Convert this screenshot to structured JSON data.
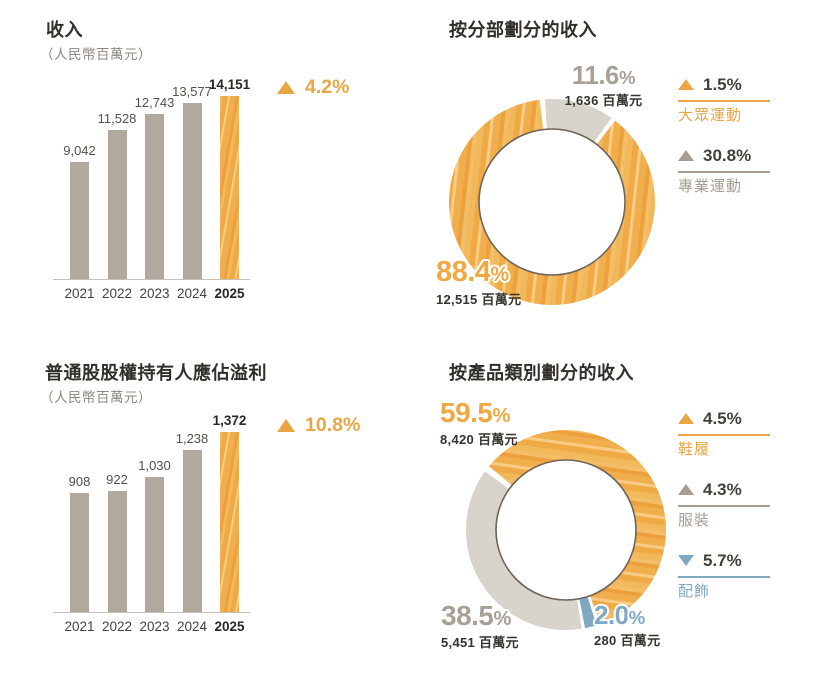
{
  "colors": {
    "accent_orange": "#E9A643",
    "bar_gray": "#B1A89E",
    "donut_gray": "#D8D3CB",
    "donut_blue": "#7FA8C2",
    "legend_gray": "#A69D92",
    "big_label_orange": "#F0A843",
    "big_label_gray": "#A8A096",
    "big_label_blue": "#7FA8C2",
    "dark_text": "#36322D"
  },
  "chart_data": [
    {
      "type": "bar",
      "title": "收入",
      "unit_label": "（人民幣百萬元）",
      "categories": [
        "2021",
        "2022",
        "2023",
        "2024",
        "2025"
      ],
      "values": [
        9042,
        11528,
        12743,
        13577,
        14151
      ],
      "value_labels": [
        "9,042",
        "11,528",
        "12,743",
        "13,577",
        "14,151"
      ],
      "highlight_index": 4,
      "ylim": [
        0,
        14151
      ],
      "grid": false,
      "growth": {
        "direction": "up",
        "label": "4.2%"
      }
    },
    {
      "type": "donut",
      "title": "按分部劃分的收入",
      "start_angle": -5,
      "slices": [
        {
          "pct": 11.6,
          "pct_label": "11.6%",
          "amount_label": "1,636 百萬元",
          "color": "gray"
        },
        {
          "pct": 88.4,
          "pct_label": "88.4%",
          "amount_label": "12,515 百萬元",
          "color": "orange"
        }
      ],
      "legend": [
        {
          "direction": "up",
          "growth_label": "1.5%",
          "label": "大眾運動",
          "color": "orange"
        },
        {
          "direction": "up",
          "growth_label": "30.8%",
          "label": "專業運動",
          "color": "gray"
        }
      ]
    },
    {
      "type": "bar",
      "title": "普通股股權持有人應佔溢利",
      "unit_label": "（人民幣百萬元）",
      "categories": [
        "2021",
        "2022",
        "2023",
        "2024",
        "2025"
      ],
      "values": [
        908,
        922,
        1030,
        1238,
        1372
      ],
      "value_labels": [
        "908",
        "922",
        "1,030",
        "1,238",
        "1,372"
      ],
      "highlight_index": 4,
      "ylim": [
        0,
        1372
      ],
      "grid": false,
      "growth": {
        "direction": "up",
        "label": "10.8%"
      }
    },
    {
      "type": "donut",
      "title": "按產品類別劃分的收入",
      "start_angle": -52,
      "slices": [
        {
          "pct": 59.5,
          "pct_label": "59.5%",
          "amount_label": "8,420 百萬元",
          "color": "orange"
        },
        {
          "pct": 2.0,
          "pct_label": "2.0%",
          "amount_label": "280 百萬元",
          "color": "blue"
        },
        {
          "pct": 38.5,
          "pct_label": "38.5%",
          "amount_label": "5,451 百萬元",
          "color": "gray"
        }
      ],
      "legend": [
        {
          "direction": "up",
          "growth_label": "4.5%",
          "label": "鞋履",
          "color": "orange"
        },
        {
          "direction": "up",
          "growth_label": "4.3%",
          "label": "服裝",
          "color": "gray"
        },
        {
          "direction": "down",
          "growth_label": "5.7%",
          "label": "配飾",
          "color": "blue"
        }
      ]
    }
  ]
}
